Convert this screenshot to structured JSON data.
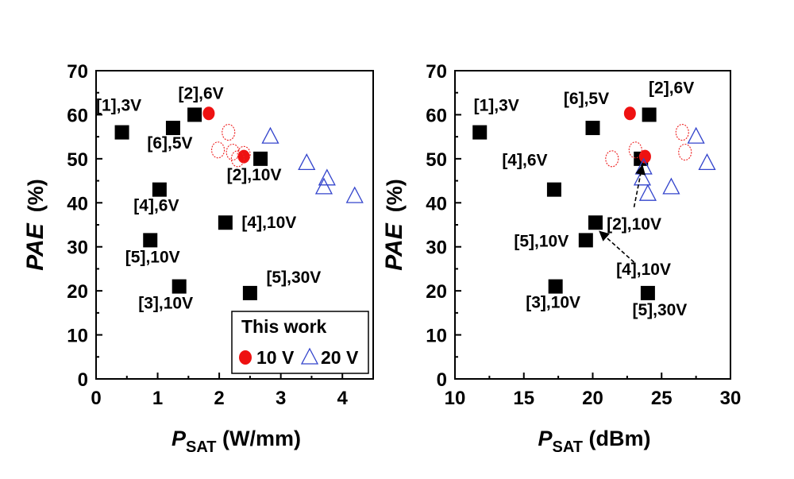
{
  "chart_data": [
    {
      "type": "scatter",
      "xlabel_main": "P",
      "xlabel_sub": "SAT",
      "xlabel_unit": " (W/mm)",
      "ylabel_main": "PAE",
      "ylabel_unit": "(%)",
      "xlim": [
        0,
        4.5
      ],
      "ylim": [
        0,
        70
      ],
      "xticks": [
        "0",
        "1",
        "2",
        "3",
        "4"
      ],
      "yticks": [
        "0",
        "10",
        "20",
        "30",
        "40",
        "50",
        "60",
        "70"
      ],
      "series": [
        {
          "name": "",
          "marker": "square",
          "points": [
            {
              "x": 0.42,
              "y": 56,
              "label": "[1],3V"
            },
            {
              "x": 1.6,
              "y": 60,
              "label": "[2],6V"
            },
            {
              "x": 1.25,
              "y": 57,
              "label": "[6],5V"
            },
            {
              "x": 1.03,
              "y": 43,
              "label": "[4],6V"
            },
            {
              "x": 2.67,
              "y": 50,
              "label": "[2],10V"
            },
            {
              "x": 2.1,
              "y": 35.5,
              "label": "[4],10V"
            },
            {
              "x": 0.88,
              "y": 31.5,
              "label": "[5],10V"
            },
            {
              "x": 1.35,
              "y": 21,
              "label": "[3],10V"
            },
            {
              "x": 2.5,
              "y": 19.5,
              "label": "[5],30V"
            }
          ]
        },
        {
          "name": "10 V",
          "marker": "filled-circle",
          "points": [
            {
              "x": 1.83,
              "y": 60.3
            },
            {
              "x": 2.4,
              "y": 50.5
            }
          ]
        },
        {
          "name": "",
          "marker": "open-circle-red",
          "points": [
            {
              "x": 2.15,
              "y": 56
            },
            {
              "x": 1.98,
              "y": 52
            },
            {
              "x": 2.22,
              "y": 51.5
            },
            {
              "x": 2.4,
              "y": 51
            },
            {
              "x": 2.3,
              "y": 50
            }
          ]
        },
        {
          "name": "20 V",
          "marker": "open-triangle",
          "points": [
            {
              "x": 2.83,
              "y": 55
            },
            {
              "x": 3.42,
              "y": 49
            },
            {
              "x": 3.75,
              "y": 45.5
            },
            {
              "x": 3.7,
              "y": 43.5
            },
            {
              "x": 4.2,
              "y": 41.5
            }
          ]
        }
      ],
      "legend": {
        "title": "This work",
        "entries": [
          {
            "label": "10 V",
            "marker": "filled-circle",
            "color": "#ee1111"
          },
          {
            "label": "20 V",
            "marker": "open-triangle",
            "color": "#3344cc"
          }
        ],
        "placement": "bottom-right"
      }
    },
    {
      "type": "scatter",
      "xlabel_main": "P",
      "xlabel_sub": "SAT",
      "xlabel_unit": " (dBm)",
      "ylabel_main": "PAE",
      "ylabel_unit": "(%)",
      "xlim": [
        10,
        30
      ],
      "ylim": [
        0,
        70
      ],
      "xticks": [
        "10",
        "15",
        "20",
        "25",
        "30"
      ],
      "yticks": [
        "0",
        "10",
        "20",
        "30",
        "40",
        "50",
        "60",
        "70"
      ],
      "series": [
        {
          "name": "",
          "marker": "square",
          "points": [
            {
              "x": 11.8,
              "y": 56,
              "label": "[1],3V"
            },
            {
              "x": 20.0,
              "y": 57,
              "label": "[6],5V"
            },
            {
              "x": 24.1,
              "y": 60,
              "label": "[2],6V"
            },
            {
              "x": 17.2,
              "y": 43,
              "label": "[4],6V"
            },
            {
              "x": 23.5,
              "y": 50,
              "label": "[2],10V"
            },
            {
              "x": 20.2,
              "y": 35.5,
              "label": "[4],10V"
            },
            {
              "x": 19.5,
              "y": 31.5,
              "label": "[5],10V"
            },
            {
              "x": 17.3,
              "y": 21,
              "label": "[3],10V"
            },
            {
              "x": 24.0,
              "y": 19.5,
              "label": "[5],30V"
            }
          ]
        },
        {
          "name": "",
          "marker": "filled-circle",
          "points": [
            {
              "x": 22.7,
              "y": 60.3
            },
            {
              "x": 23.8,
              "y": 50.5
            }
          ]
        },
        {
          "name": "",
          "marker": "open-circle-red",
          "points": [
            {
              "x": 21.4,
              "y": 50
            },
            {
              "x": 23.1,
              "y": 52
            },
            {
              "x": 26.5,
              "y": 56
            },
            {
              "x": 26.7,
              "y": 51.5
            }
          ]
        },
        {
          "name": "",
          "marker": "open-triangle",
          "points": [
            {
              "x": 23.6,
              "y": 45.5
            },
            {
              "x": 23.7,
              "y": 48
            },
            {
              "x": 24.0,
              "y": 42
            },
            {
              "x": 25.7,
              "y": 43.5
            },
            {
              "x": 27.5,
              "y": 55
            },
            {
              "x": 28.3,
              "y": 49
            }
          ]
        }
      ],
      "annotations": [
        {
          "label": "[2],10V",
          "from_x": 23.0,
          "from_y": 39,
          "to_x": 23.6,
          "to_y": 48.5
        },
        {
          "label": "[4],10V",
          "from_x": 23.0,
          "from_y": 26.5,
          "to_x": 20.5,
          "to_y": 33.5
        }
      ]
    }
  ]
}
